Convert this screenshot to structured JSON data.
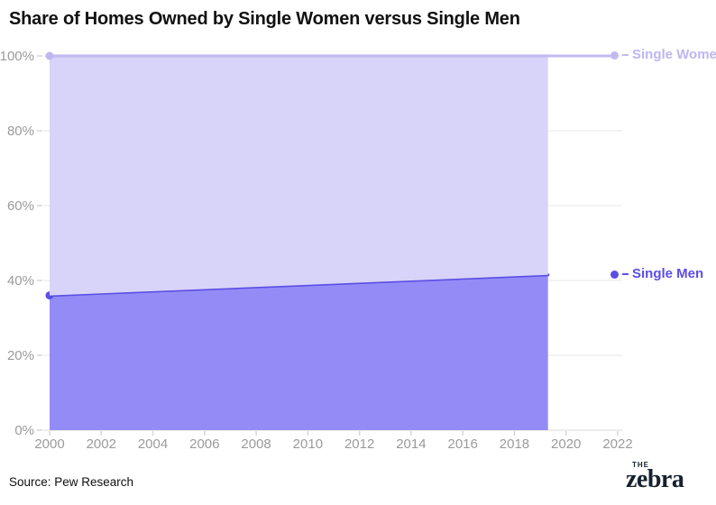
{
  "title": "Share of Homes Owned by Single Women versus Single Men",
  "source": "Source: Pew Research",
  "logo": {
    "the": "THE",
    "name": "zebra"
  },
  "end_labels": {
    "women": "Single Women",
    "men": "Single Men"
  },
  "colors": {
    "women_fill": "#D8D3F8",
    "women_line": "#C2BAF1",
    "women_label": "#BDB5F4",
    "men_fill": "#948CF6",
    "men_line": "#5A4FE3",
    "men_label": "#5B4EE4",
    "grid": "#ECECEC",
    "axis_line": "#E2E2E2",
    "tick": "#D6D6D6",
    "axis_label": "#9B9B9B",
    "title_color": "#111111",
    "logo_color": "#16202E"
  },
  "chart_data": {
    "type": "area",
    "stacked": true,
    "title": "Share of Homes Owned by Single Women versus Single Men",
    "xlabel": "",
    "ylabel": "",
    "xlim": [
      2000,
      2022.2
    ],
    "ylim": [
      0,
      100
    ],
    "grid": "horizontal",
    "legend_position": "right-end-labels",
    "x_ticks": [
      {
        "v": 2000,
        "label": "2000"
      },
      {
        "v": 2002,
        "label": "2002"
      },
      {
        "v": 2004,
        "label": "2004"
      },
      {
        "v": 2006,
        "label": "2006"
      },
      {
        "v": 2008,
        "label": "2008"
      },
      {
        "v": 2010,
        "label": "2010"
      },
      {
        "v": 2012,
        "label": "2012"
      },
      {
        "v": 2014,
        "label": "2014"
      },
      {
        "v": 2016,
        "label": "2016"
      },
      {
        "v": 2018,
        "label": "2018"
      },
      {
        "v": 2020,
        "label": "2020"
      },
      {
        "v": 2022,
        "label": "2022"
      }
    ],
    "y_ticks": [
      {
        "v": 0,
        "label": "0%"
      },
      {
        "v": 20,
        "label": "20%"
      },
      {
        "v": 40,
        "label": "40%"
      },
      {
        "v": 60,
        "label": "60%"
      },
      {
        "v": 80,
        "label": "80%"
      },
      {
        "v": 100,
        "label": "100%"
      }
    ],
    "series": [
      {
        "name": "Single Men",
        "points": [
          [
            2000,
            36
          ],
          [
            2019.3,
            41.5
          ]
        ],
        "fill": "#948CF6",
        "line": "#5A4FE3",
        "start_dot": "#5A4FE3"
      },
      {
        "name": "Single Women",
        "points": [
          [
            2000,
            64
          ],
          [
            2019.3,
            58.5
          ]
        ],
        "fill": "#D8D3F8",
        "line": "#C2BAF1",
        "start_dot": "#BFB7F0"
      }
    ]
  }
}
